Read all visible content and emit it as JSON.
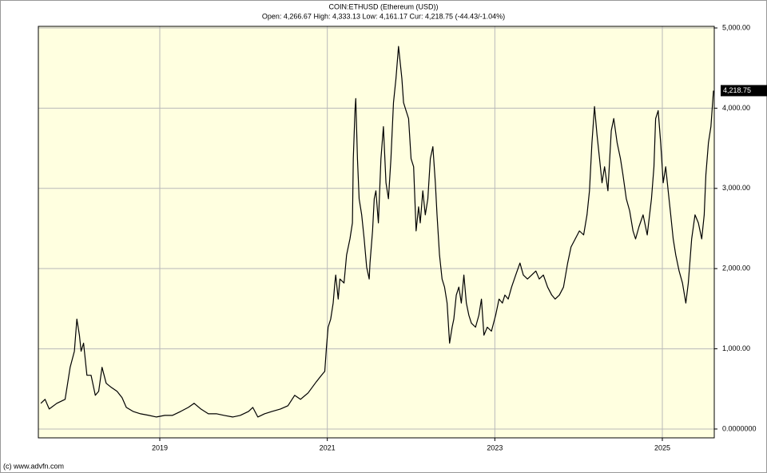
{
  "chart_data": {
    "type": "line",
    "title": "COIN:ETHUSD (Ethereum (USD))",
    "subtitle": "Open: 4,266.67 High: 4,333.13 Low: 4,161.17 Cur: 4,218.75 (-44.43/-1.04%)",
    "source": "(c) www.advfn.com",
    "x": [
      2017.58,
      2017.63,
      2017.68,
      2017.77,
      2017.87,
      2017.93,
      2017.98,
      2018.01,
      2018.04,
      2018.06,
      2018.09,
      2018.13,
      2018.18,
      2018.23,
      2018.27,
      2018.31,
      2018.36,
      2018.42,
      2018.49,
      2018.55,
      2018.6,
      2018.68,
      2018.77,
      2018.87,
      2018.96,
      2019.06,
      2019.15,
      2019.25,
      2019.34,
      2019.41,
      2019.49,
      2019.58,
      2019.68,
      2019.77,
      2019.87,
      2019.96,
      2020.06,
      2020.11,
      2020.17,
      2020.25,
      2020.34,
      2020.44,
      2020.53,
      2020.61,
      2020.68,
      2020.77,
      2020.87,
      2020.93,
      2020.97,
      2020.99,
      2021.01,
      2021.04,
      2021.07,
      2021.09,
      2021.1,
      2021.13,
      2021.15,
      2021.2,
      2021.23,
      2021.27,
      2021.3,
      2021.31,
      2021.33,
      2021.34,
      2021.36,
      2021.38,
      2021.41,
      2021.44,
      2021.47,
      2021.5,
      2021.51,
      2021.54,
      2021.56,
      2021.58,
      2021.61,
      2021.64,
      2021.67,
      2021.7,
      2021.73,
      2021.76,
      2021.79,
      2021.82,
      2021.85,
      2021.87,
      2021.89,
      2021.91,
      2021.94,
      2021.97,
      2022.0,
      2022.03,
      2022.06,
      2022.09,
      2022.11,
      2022.14,
      2022.17,
      2022.2,
      2022.23,
      2022.26,
      2022.29,
      2022.31,
      2022.34,
      2022.37,
      2022.4,
      2022.43,
      2022.46,
      2022.49,
      2022.51,
      2022.54,
      2022.57,
      2022.6,
      2022.63,
      2022.66,
      2022.69,
      2022.72,
      2022.77,
      2022.81,
      2022.84,
      2022.87,
      2022.91,
      2022.96,
      2023.01,
      2023.05,
      2023.09,
      2023.12,
      2023.16,
      2023.2,
      2023.25,
      2023.3,
      2023.34,
      2023.39,
      2023.44,
      2023.49,
      2023.53,
      2023.58,
      2023.63,
      2023.68,
      2023.72,
      2023.77,
      2023.82,
      2023.87,
      2023.91,
      2023.96,
      2024.01,
      2024.06,
      2024.1,
      2024.13,
      2024.16,
      2024.19,
      2024.22,
      2024.25,
      2024.28,
      2024.31,
      2024.35,
      2024.39,
      2024.42,
      2024.46,
      2024.5,
      2024.53,
      2024.57,
      2024.61,
      2024.65,
      2024.68,
      2024.72,
      2024.77,
      2024.82,
      2024.87,
      2024.9,
      2024.92,
      2024.95,
      2024.98,
      2025.01,
      2025.04,
      2025.07,
      2025.1,
      2025.13,
      2025.16,
      2025.2,
      2025.24,
      2025.28,
      2025.31,
      2025.35,
      2025.39,
      2025.43,
      2025.47,
      2025.5,
      2025.52,
      2025.55,
      2025.58,
      2025.61
    ],
    "series": [
      {
        "name": "COIN:ETHUSD",
        "color": "#000000",
        "values": [
          320,
          370,
          250,
          320,
          370,
          770,
          970,
          1370,
          1170,
          970,
          1070,
          670,
          670,
          420,
          470,
          770,
          570,
          520,
          470,
          390,
          270,
          220,
          190,
          170,
          150,
          170,
          170,
          220,
          270,
          320,
          250,
          190,
          190,
          170,
          150,
          170,
          220,
          270,
          150,
          190,
          220,
          250,
          290,
          420,
          370,
          450,
          590,
          670,
          720,
          1020,
          1270,
          1370,
          1570,
          1820,
          1920,
          1620,
          1870,
          1820,
          2170,
          2370,
          2570,
          3370,
          3970,
          4120,
          3370,
          2870,
          2670,
          2370,
          2020,
          1870,
          2070,
          2470,
          2870,
          2970,
          2570,
          3370,
          3770,
          3070,
          2870,
          3370,
          4070,
          4370,
          4770,
          4570,
          4370,
          4070,
          3970,
          3870,
          3370,
          3270,
          2470,
          2770,
          2570,
          2970,
          2670,
          2870,
          3370,
          3520,
          3070,
          2670,
          2170,
          1870,
          1770,
          1570,
          1070,
          1270,
          1370,
          1670,
          1770,
          1570,
          1920,
          1570,
          1420,
          1320,
          1270,
          1420,
          1620,
          1170,
          1270,
          1220,
          1420,
          1620,
          1570,
          1670,
          1620,
          1770,
          1920,
          2070,
          1920,
          1870,
          1920,
          1970,
          1870,
          1920,
          1770,
          1670,
          1620,
          1670,
          1770,
          2070,
          2270,
          2370,
          2470,
          2420,
          2670,
          2970,
          3570,
          4020,
          3670,
          3370,
          3070,
          3270,
          2970,
          3720,
          3870,
          3570,
          3370,
          3170,
          2870,
          2720,
          2470,
          2370,
          2520,
          2670,
          2420,
          2870,
          3270,
          3870,
          3970,
          3570,
          3070,
          3270,
          2970,
          2670,
          2370,
          2170,
          1970,
          1820,
          1570,
          1820,
          2370,
          2670,
          2570,
          2370,
          2670,
          3170,
          3570,
          3770,
          4218.75
        ]
      }
    ],
    "last_label": {
      "value": 4218.75,
      "label": "4,218.75"
    },
    "xlim": [
      2017.55,
      2025.62
    ],
    "xticks": [
      2019,
      2021,
      2023,
      2025
    ],
    "ylim": [
      -110,
      5020
    ],
    "yticks": [
      {
        "value": 0,
        "label": "0.0000000"
      },
      {
        "value": 1000,
        "label": "1,000.00"
      },
      {
        "value": 2000,
        "label": "2,000.00"
      },
      {
        "value": 3000,
        "label": "3,000.00"
      },
      {
        "value": 4000,
        "label": "4,000.00"
      },
      {
        "value": 5000,
        "label": "5,000.00"
      }
    ],
    "grid": true,
    "background": "#ffffe0"
  }
}
